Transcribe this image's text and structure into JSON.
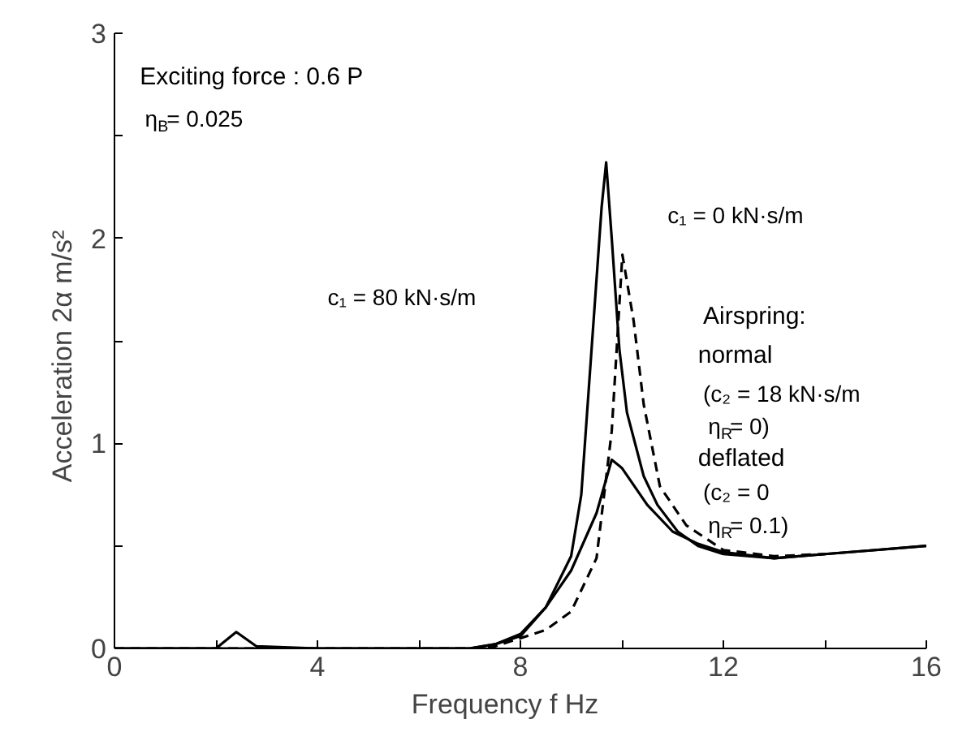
{
  "chart_data": {
    "type": "line",
    "xlabel": "Frequency   f   Hz",
    "ylabel": "Acceleration   2α   m/s²",
    "xlim": [
      0,
      16
    ],
    "ylim": [
      0,
      3
    ],
    "xticks": [
      0,
      {
        "value": 2,
        "label": null
      },
      4,
      {
        "value": 6,
        "label": null
      },
      8,
      {
        "value": 10,
        "label": null
      },
      12,
      {
        "value": 14,
        "label": null
      },
      16
    ],
    "yticks": [
      0,
      {
        "value": 0.5,
        "label": null
      },
      1,
      {
        "value": 1.5,
        "label": null
      },
      2,
      {
        "value": 2.5,
        "label": null
      },
      3
    ],
    "grid": false,
    "marker": "none",
    "series": [
      {
        "color": "#000000",
        "line_style": "solid",
        "x": [
          0,
          2,
          2.4,
          2.8,
          4,
          7,
          7.5,
          8,
          8.5,
          9,
          9.2,
          9.48,
          9.6,
          9.69,
          9.8,
          9.95,
          10.1,
          10.43,
          10.7,
          11.1,
          11.5,
          12,
          13,
          14,
          15,
          16
        ],
        "values": [
          0,
          0,
          0.08,
          0.01,
          0,
          0,
          0.02,
          0.07,
          0.2,
          0.45,
          0.75,
          1.73,
          2.15,
          2.37,
          2.0,
          1.46,
          1.15,
          0.84,
          0.7,
          0.57,
          0.5,
          0.46,
          0.44,
          0.46,
          0.48,
          0.5
        ]
      },
      {
        "color": "#000000",
        "line_style": "solid",
        "x": [
          0,
          7,
          7.5,
          8,
          8.5,
          9,
          9.5,
          9.8,
          10,
          10.5,
          11,
          11.5,
          12,
          13,
          14,
          15,
          16
        ],
        "values": [
          0,
          0,
          0.02,
          0.06,
          0.2,
          0.38,
          0.66,
          0.92,
          0.88,
          0.7,
          0.57,
          0.51,
          0.47,
          0.44,
          0.46,
          0.48,
          0.5
        ]
      },
      {
        "color": "#000000",
        "line_style": "dashed",
        "x": [
          0,
          7,
          7.5,
          8,
          8.5,
          9,
          9.5,
          9.8,
          10.01,
          10.23,
          10.43,
          10.75,
          11.27,
          12,
          13,
          14
        ],
        "values": [
          0,
          0,
          0.01,
          0.05,
          0.09,
          0.18,
          0.44,
          1.06,
          1.92,
          1.6,
          1.19,
          0.79,
          0.6,
          0.48,
          0.45,
          0.46
        ]
      }
    ],
    "annotations": [
      "Exciting force : 0.6 P",
      "η$_{B}$= 0.025",
      "c₁ = 0 kN·s/m",
      "c₁ = 80 kN·s/m",
      "Airspring:",
      "normal",
      "(c₂ = 18 kN·s/m",
      "η$_{R}$= 0)",
      "deflated",
      "(c₂ = 0",
      "η$_{R}$= 0.1)"
    ]
  }
}
